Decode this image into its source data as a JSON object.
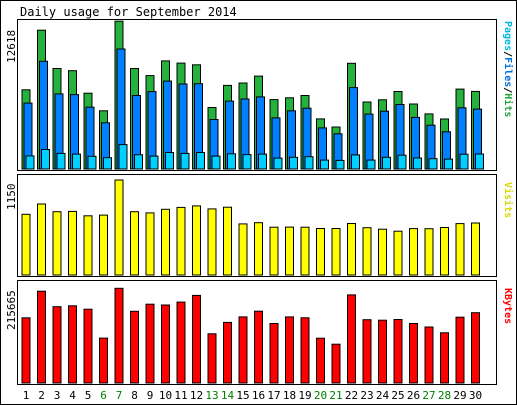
{
  "title": "Daily usage for September 2014",
  "colors": {
    "hits": "#24b23d",
    "files": "#0080ff",
    "pages": "#00d0ff",
    "visits": "#ffff00",
    "kbytes": "#ff0000",
    "weekday_label": "#000000",
    "weekend_label": "#008000",
    "legend_visits": "#d8d800",
    "legend_kbytes": "#ff0000"
  },
  "legends": {
    "pages": "Pages",
    "files": "Files",
    "hits": "Hits",
    "sep": "/",
    "visits": "Visits",
    "kbytes": "KBytes"
  },
  "y_max": {
    "hits": "12618",
    "visits": "1150",
    "kbytes": "215665"
  },
  "chart_data": [
    {
      "type": "bar",
      "name": "hits-files-pages",
      "categories": [
        "1",
        "2",
        "3",
        "4",
        "5",
        "6",
        "7",
        "8",
        "9",
        "10",
        "11",
        "12",
        "13",
        "14",
        "15",
        "16",
        "17",
        "18",
        "19",
        "20",
        "21",
        "22",
        "23",
        "24",
        "25",
        "26",
        "27",
        "28",
        "29",
        "30"
      ],
      "ylim": [
        0,
        12618
      ],
      "series": [
        {
          "name": "Hits",
          "values": [
            6750,
            11830,
            8570,
            8380,
            6460,
            4960,
            12600,
            8570,
            7960,
            9220,
            9030,
            8880,
            5240,
            7130,
            7330,
            7920,
            5920,
            6070,
            6270,
            4270,
            3580,
            9010,
            5710,
            5900,
            6610,
            5540,
            4700,
            4260,
            6810,
            6620
          ]
        },
        {
          "name": "Files",
          "values": [
            5620,
            9180,
            6400,
            6340,
            5270,
            3940,
            10230,
            6270,
            6600,
            7490,
            7250,
            7270,
            4220,
            5790,
            5970,
            6150,
            4360,
            4960,
            5180,
            3500,
            3000,
            6940,
            4680,
            4930,
            5500,
            4400,
            3730,
            3170,
            5220,
            5110
          ]
        },
        {
          "name": "Pages",
          "values": [
            1120,
            1660,
            1330,
            1270,
            1080,
            960,
            2080,
            1220,
            1100,
            1410,
            1330,
            1410,
            1100,
            1300,
            1230,
            1270,
            930,
            1000,
            1050,
            760,
            730,
            1200,
            760,
            1000,
            1180,
            940,
            880,
            840,
            1260,
            1280
          ]
        }
      ],
      "y_tick_label": "12618"
    },
    {
      "type": "bar",
      "name": "visits",
      "categories": [
        "1",
        "2",
        "3",
        "4",
        "5",
        "6",
        "7",
        "8",
        "9",
        "10",
        "11",
        "12",
        "13",
        "14",
        "15",
        "16",
        "17",
        "18",
        "19",
        "20",
        "21",
        "22",
        "23",
        "24",
        "25",
        "26",
        "27",
        "28",
        "29",
        "30"
      ],
      "ylim": [
        0,
        1150
      ],
      "series": [
        {
          "name": "Visits",
          "values": [
            735,
            860,
            766,
            770,
            717,
            725,
            1150,
            766,
            752,
            795,
            818,
            837,
            800,
            821,
            618,
            633,
            579,
            580,
            579,
            563,
            563,
            624,
            573,
            555,
            530,
            562,
            560,
            575,
            622,
            630
          ]
        }
      ],
      "y_tick_label": "1150"
    },
    {
      "type": "bar",
      "name": "kbytes",
      "categories": [
        "1",
        "2",
        "3",
        "4",
        "5",
        "6",
        "7",
        "8",
        "9",
        "10",
        "11",
        "12",
        "13",
        "14",
        "15",
        "16",
        "17",
        "18",
        "19",
        "20",
        "21",
        "22",
        "23",
        "24",
        "25",
        "26",
        "27",
        "28",
        "29",
        "30"
      ],
      "ylim": [
        0,
        215665
      ],
      "series": [
        {
          "name": "KBytes",
          "values": [
            148000,
            208300,
            173100,
            175200,
            167500,
            102000,
            215000,
            162700,
            178800,
            177000,
            183700,
            198800,
            111600,
            137500,
            150000,
            163000,
            135000,
            150000,
            148000,
            101600,
            88000,
            200000,
            143600,
            142500,
            144200,
            135000,
            127100,
            114000,
            149400,
            159600
          ]
        }
      ],
      "y_tick_label": "215665"
    }
  ],
  "days": [
    {
      "label": "1",
      "weekend": false
    },
    {
      "label": "2",
      "weekend": false
    },
    {
      "label": "3",
      "weekend": false
    },
    {
      "label": "4",
      "weekend": false
    },
    {
      "label": "5",
      "weekend": false
    },
    {
      "label": "6",
      "weekend": true
    },
    {
      "label": "7",
      "weekend": true
    },
    {
      "label": "8",
      "weekend": false
    },
    {
      "label": "9",
      "weekend": false
    },
    {
      "label": "10",
      "weekend": false
    },
    {
      "label": "11",
      "weekend": false
    },
    {
      "label": "12",
      "weekend": false
    },
    {
      "label": "13",
      "weekend": true
    },
    {
      "label": "14",
      "weekend": true
    },
    {
      "label": "15",
      "weekend": false
    },
    {
      "label": "16",
      "weekend": false
    },
    {
      "label": "17",
      "weekend": false
    },
    {
      "label": "18",
      "weekend": false
    },
    {
      "label": "19",
      "weekend": false
    },
    {
      "label": "20",
      "weekend": true
    },
    {
      "label": "21",
      "weekend": true
    },
    {
      "label": "22",
      "weekend": false
    },
    {
      "label": "23",
      "weekend": false
    },
    {
      "label": "24",
      "weekend": false
    },
    {
      "label": "25",
      "weekend": false
    },
    {
      "label": "26",
      "weekend": false
    },
    {
      "label": "27",
      "weekend": true
    },
    {
      "label": "28",
      "weekend": true
    },
    {
      "label": "29",
      "weekend": false
    },
    {
      "label": "30",
      "weekend": false
    }
  ]
}
